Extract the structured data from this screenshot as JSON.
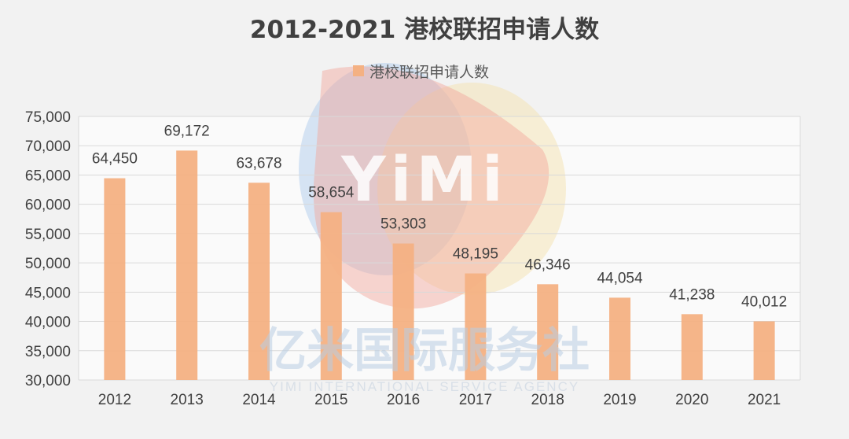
{
  "chart_data": {
    "type": "bar",
    "title": "2012-2021 港校联招申请人数",
    "categories": [
      "2012",
      "2013",
      "2014",
      "2015",
      "2016",
      "2017",
      "2018",
      "2019",
      "2020",
      "2021"
    ],
    "series": [
      {
        "name": "港校联招申请人数",
        "values": [
          64450,
          69172,
          63678,
          58654,
          53303,
          48195,
          46346,
          44054,
          41238,
          40012
        ],
        "value_labels": [
          "64,450",
          "69,172",
          "63,678",
          "58,654",
          "53,303",
          "48,195",
          "46,346",
          "44,054",
          "41,238",
          "40,012"
        ]
      }
    ],
    "ylim": [
      30000,
      75000
    ],
    "yticks": [
      "30,000",
      "35,000",
      "40,000",
      "45,000",
      "50,000",
      "55,000",
      "60,000",
      "65,000",
      "70,000",
      "75,000"
    ],
    "ytick_values": [
      30000,
      35000,
      40000,
      45000,
      50000,
      55000,
      60000,
      65000,
      70000,
      75000
    ],
    "grid": true,
    "legend_position": "top-center",
    "bar_color": "#f4b183",
    "grid_color": "#d9d9d9"
  },
  "watermark": {
    "logo_text": "YiMi",
    "chinese": "亿米国际服务社",
    "english": "YIMI INTERNATIONAL SERVICE AGENCY"
  }
}
